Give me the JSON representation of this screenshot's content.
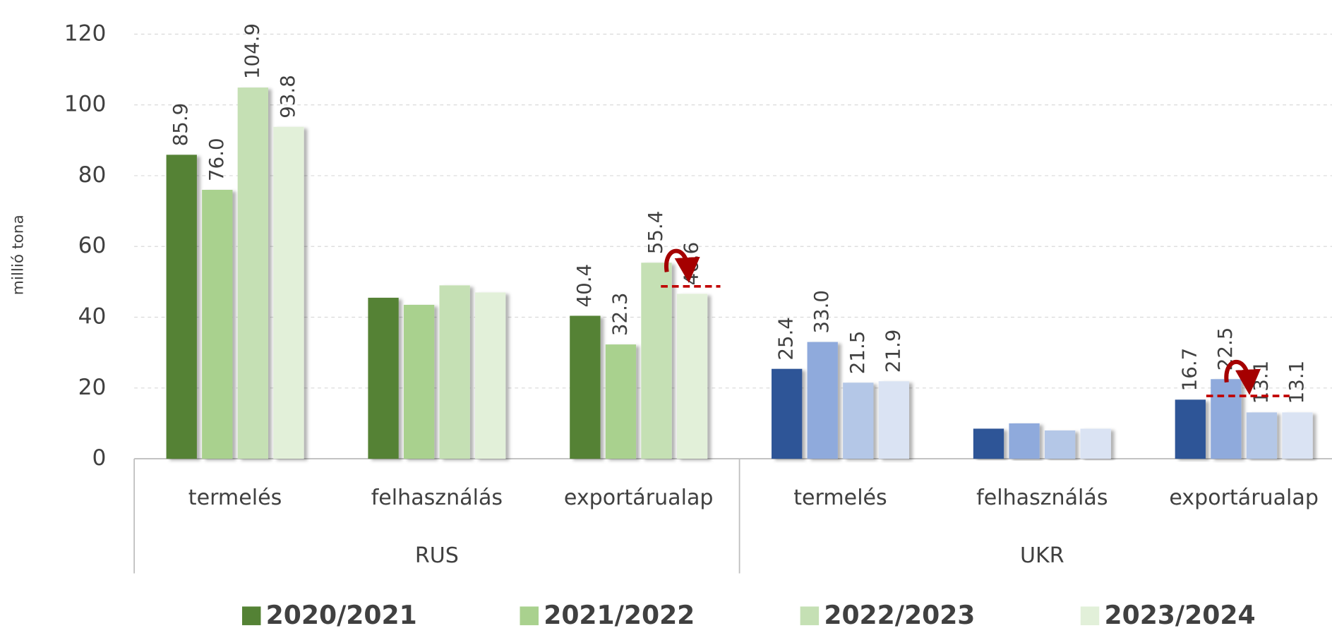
{
  "chart_data": {
    "type": "bar",
    "y_label": "millió tona",
    "categories": [
      "termelés",
      "felhasználás",
      "exportárualap",
      "termelés",
      "felhasználás",
      "exportárualap"
    ],
    "groups": [
      "RUS",
      "UKR"
    ],
    "ylim": [
      0,
      120
    ],
    "yticks": [
      0,
      20,
      40,
      60,
      80,
      100,
      120
    ],
    "grid": true,
    "legend": "bottom",
    "series": [
      {
        "name": "2020/2021",
        "colors": [
          "#548235",
          "#548235",
          "#548235",
          "#2f5597",
          "#2f5597",
          "#2f5597"
        ],
        "values": [
          85.9,
          45.5,
          40.4,
          25.4,
          8.5,
          16.7
        ],
        "value_labels": [
          "85.9",
          null,
          "40.4",
          "25.4",
          null,
          "16.7"
        ]
      },
      {
        "name": "2021/2022",
        "colors": [
          "#a9d18e",
          "#a9d18e",
          "#a9d18e",
          "#8faadc",
          "#8faadc",
          "#8faadc"
        ],
        "values": [
          76.0,
          43.5,
          32.3,
          33.0,
          10.0,
          22.5
        ],
        "value_labels": [
          "76.0",
          null,
          "32.3",
          "33.0",
          null,
          "22.5"
        ]
      },
      {
        "name": "2022/2023",
        "colors": [
          "#c5e0b4",
          "#c5e0b4",
          "#c5e0b4",
          "#b4c7e7",
          "#b4c7e7",
          "#b4c7e7"
        ],
        "values": [
          104.9,
          49.0,
          55.4,
          21.5,
          8.0,
          13.1
        ],
        "value_labels": [
          "104.9",
          null,
          "55.4",
          "21.5",
          null,
          "13.1"
        ]
      },
      {
        "name": "2023/2024",
        "colors": [
          "#e2f0d9",
          "#e2f0d9",
          "#e2f0d9",
          "#dae3f3",
          "#dae3f3",
          "#dae3f3"
        ],
        "values": [
          93.8,
          47.0,
          46.6,
          21.9,
          8.5,
          13.1
        ],
        "value_labels": [
          "93.8",
          null,
          "46.6",
          "21.9",
          null,
          "13.1"
        ]
      }
    ]
  }
}
